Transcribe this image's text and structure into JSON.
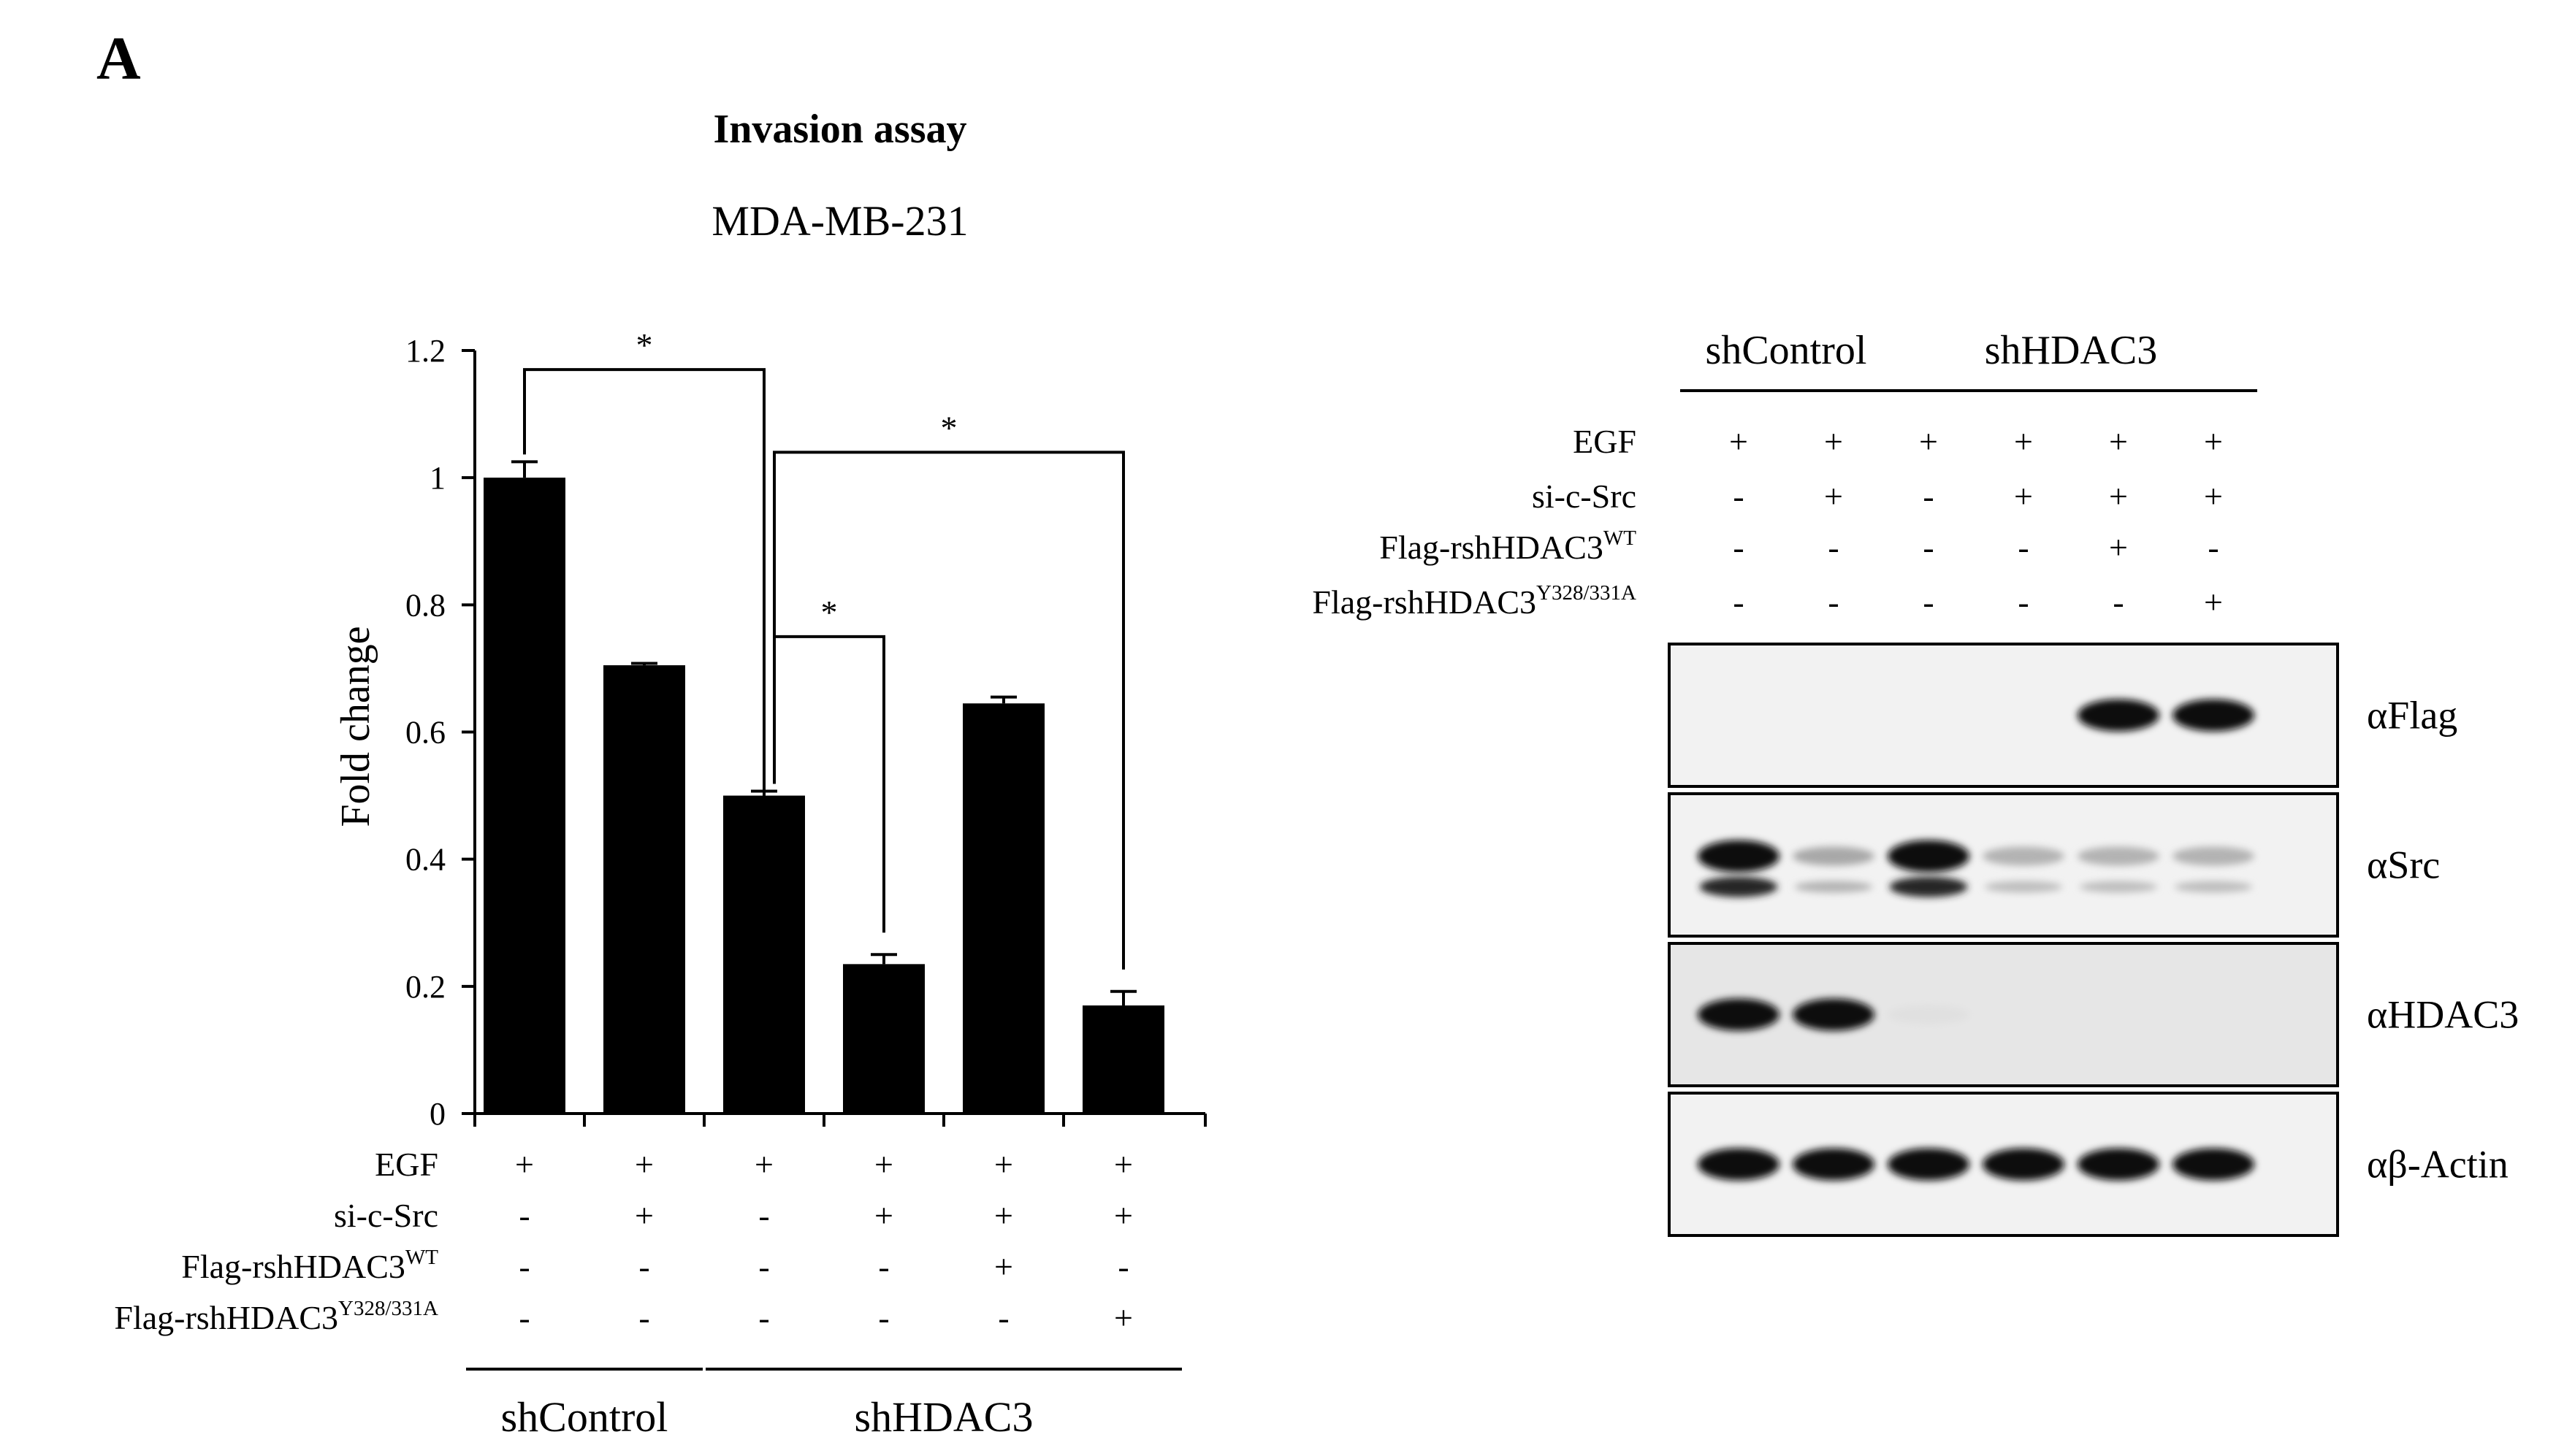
{
  "panel_letter": "A",
  "chart_data": {
    "type": "bar",
    "title": "Invasion assay",
    "subtitle": "MDA-MB-231",
    "ylabel": "Fold change",
    "ylim": [
      0,
      1.2
    ],
    "yticks": [
      "0",
      "0.2",
      "0.4",
      "0.6",
      "0.8",
      "1",
      "1.2"
    ],
    "ytick_values": [
      0,
      0.2,
      0.4,
      0.6,
      0.8,
      1,
      1.2
    ],
    "values": [
      1.0,
      0.705,
      0.5,
      0.235,
      0.645,
      0.17
    ],
    "errors": [
      0.025,
      0.003,
      0.007,
      0.015,
      0.01,
      0.022
    ],
    "significance": [
      {
        "from": 0,
        "to": 2,
        "label": "*",
        "top": 1.17
      },
      {
        "from": 2,
        "to": 3,
        "label": "*",
        "top": 0.75
      },
      {
        "from": 2,
        "to": 5,
        "label": "*",
        "top": 1.04
      }
    ],
    "conditions": [
      {
        "label": "EGF",
        "values": [
          "+",
          "+",
          "+",
          "+",
          "+",
          "+"
        ]
      },
      {
        "label": "si-c-Src",
        "values": [
          "-",
          "+",
          "-",
          "+",
          "+",
          "+"
        ]
      },
      {
        "label": "Flag-rshHDAC3",
        "sup": "WT",
        "values": [
          "-",
          "-",
          "-",
          "-",
          "+",
          "-"
        ]
      },
      {
        "label": "Flag-rshHDAC3",
        "sup": "Y328/331A",
        "values": [
          "-",
          "-",
          "-",
          "-",
          "-",
          "+"
        ]
      }
    ],
    "groups": [
      {
        "label": "shControl",
        "from": 0,
        "to": 1
      },
      {
        "label": "shHDAC3",
        "from": 2,
        "to": 5
      }
    ]
  },
  "blot": {
    "groups": [
      {
        "label": "shControl",
        "from": 0,
        "to": 1
      },
      {
        "label": "shHDAC3",
        "from": 2,
        "to": 5
      }
    ],
    "conditions": [
      {
        "label": "EGF",
        "values": [
          "+",
          "+",
          "+",
          "+",
          "+",
          "+"
        ]
      },
      {
        "label": "si-c-Src",
        "values": [
          "-",
          "+",
          "-",
          "+",
          "+",
          "+"
        ]
      },
      {
        "label": "Flag-rshHDAC3",
        "sup": "WT",
        "values": [
          "-",
          "-",
          "-",
          "-",
          "+",
          "-"
        ]
      },
      {
        "label": "Flag-rshHDAC3",
        "sup": "Y328/331A",
        "values": [
          "-",
          "-",
          "-",
          "-",
          "-",
          "+"
        ]
      }
    ],
    "panels": [
      {
        "label": "αFlag",
        "bands": [
          0,
          0,
          0,
          0,
          1,
          1
        ]
      },
      {
        "label": "αSrc",
        "bands": [
          1,
          0.3,
          1,
          0.25,
          0.25,
          0.25
        ]
      },
      {
        "label": "αHDAC3",
        "bands": [
          1,
          1,
          0.05,
          0,
          0,
          0
        ]
      },
      {
        "label": "αβ-Actin",
        "bands": [
          1,
          1,
          1,
          1,
          1,
          1
        ]
      }
    ]
  }
}
